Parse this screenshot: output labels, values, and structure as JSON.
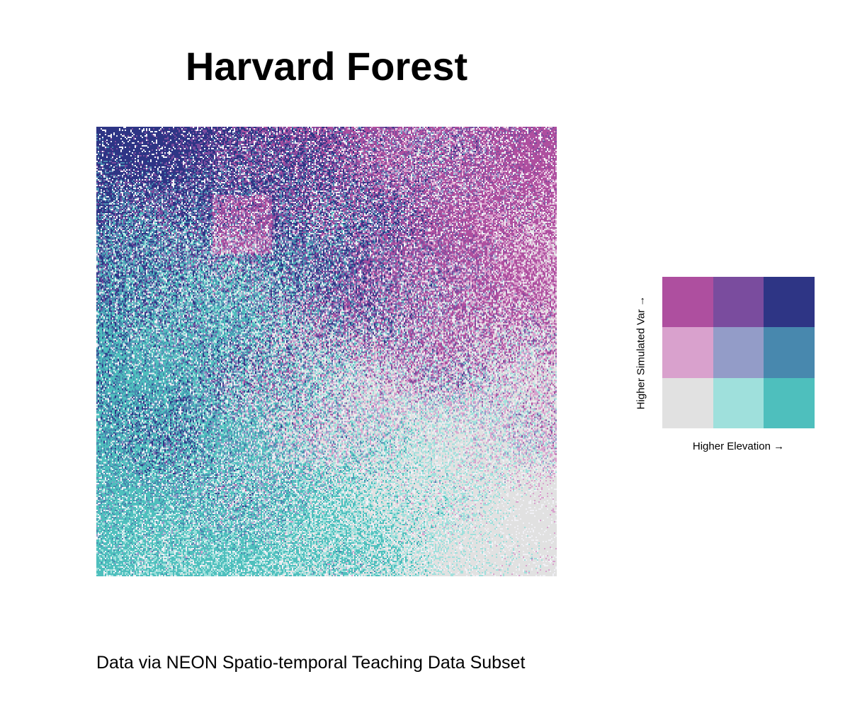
{
  "title": "Harvard Forest",
  "caption": "Data via NEON Spatio-temporal Teaching Data Subset",
  "legend": {
    "x_axis_label": "Higher Elevation →",
    "y_axis_label": "Higher Simulated Var →",
    "colors": [
      [
        "#ae4f9f",
        "#7a4c9e",
        "#2e3585"
      ],
      [
        "#d9a1cd",
        "#939cc8",
        "#4888ae"
      ],
      [
        "#e1e1e1",
        "#9fe0dc",
        "#4ebfbd"
      ]
    ]
  },
  "map": {
    "description_colors": {
      "low_low": "#e1e1e1",
      "high_high": "#2e3585",
      "high_var_low_elev": "#ae4f9f",
      "low_var_high_elev": "#4ebfbd"
    }
  }
}
